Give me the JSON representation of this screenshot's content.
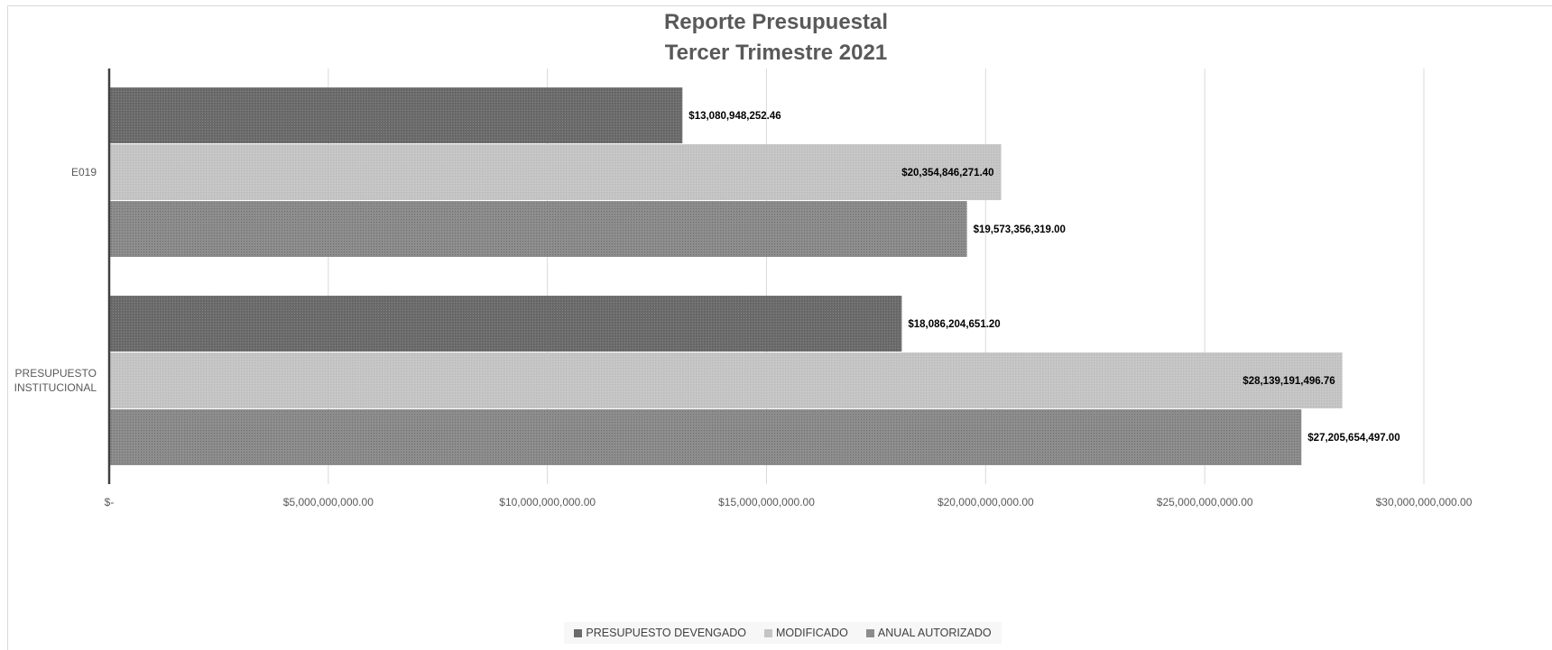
{
  "chart_data": {
    "type": "bar",
    "orientation": "horizontal",
    "title": [
      "Reporte Presupuestal",
      "Tercer Trimestre 2021"
    ],
    "categories": [
      "E019",
      "PRESUPUESTO INSTITUCIONAL"
    ],
    "category_lines": [
      [
        "E019"
      ],
      [
        "PRESUPUESTO",
        "INSTITUCIONAL"
      ]
    ],
    "series": [
      {
        "name": "PRESUPUESTO DEVENGADO",
        "color": "#6b6b6b",
        "values": [
          13080948252.46,
          18086204651.2
        ],
        "labels": [
          "$13,080,948,252.46",
          "$18,086,204,651.20"
        ],
        "label_position": "outside"
      },
      {
        "name": "MODIFICADO",
        "color": "#c4c4c4",
        "values": [
          20354846271.4,
          28139191496.76
        ],
        "labels": [
          "$20,354,846,271.40",
          "$28,139,191,496.76"
        ],
        "label_position": "inside"
      },
      {
        "name": "ANUAL AUTORIZADO",
        "color": "#8c8c8c",
        "values": [
          19573356319.0,
          27205654497.0
        ],
        "labels": [
          "$19,573,356,319.00",
          "$27,205,654,497.00"
        ],
        "label_position": "outside"
      }
    ],
    "xlim": [
      0,
      30000000000
    ],
    "x_ticks": [
      0,
      5000000000,
      10000000000,
      15000000000,
      20000000000,
      25000000000,
      30000000000
    ],
    "x_tick_labels": [
      "$-",
      "$5,000,000,000.00",
      "$10,000,000,000.00",
      "$15,000,000,000.00",
      "$20,000,000,000.00",
      "$25,000,000,000.00",
      "$30,000,000,000.00"
    ],
    "xlabel": "",
    "ylabel": "",
    "grid": true,
    "legend_position": "bottom"
  }
}
